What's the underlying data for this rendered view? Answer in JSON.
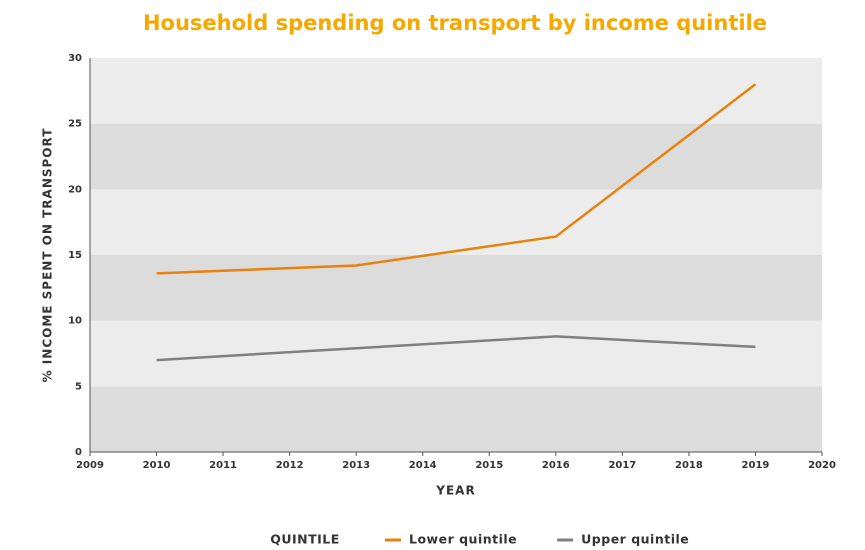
{
  "chart_data": {
    "type": "line",
    "title": "Household spending on transport by income quintile",
    "x_label": "YEAR",
    "y_label": "% INCOME SPENT ON TRANSPORT",
    "legend_title": "QUINTILE",
    "x": [
      2010,
      2013,
      2016,
      2019
    ],
    "series": [
      {
        "name": "Lower quintile",
        "color": "#e8820c",
        "values": [
          13.6,
          14.2,
          16.4,
          28.0
        ]
      },
      {
        "name": "Upper quintile",
        "color": "#808080",
        "values": [
          7.0,
          7.9,
          8.8,
          8.0
        ]
      }
    ],
    "xlim": [
      2009,
      2020
    ],
    "xticks": [
      2009,
      2010,
      2011,
      2012,
      2013,
      2014,
      2015,
      2016,
      2017,
      2018,
      2019,
      2020
    ],
    "ylim": [
      0,
      30
    ],
    "yticks": [
      0,
      5,
      10,
      15,
      20,
      25,
      30
    ],
    "grid": "bands",
    "band_colors": [
      "#dcdcdc",
      "#ececec"
    ],
    "legend": "bottom"
  }
}
